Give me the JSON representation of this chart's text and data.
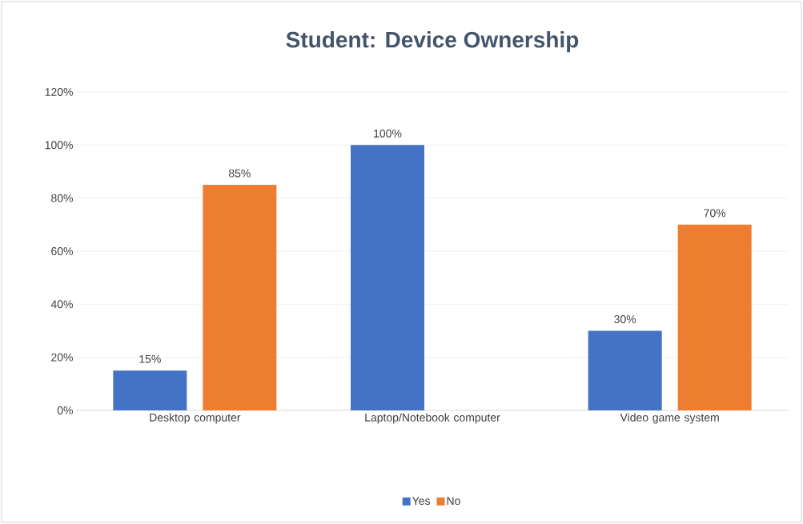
{
  "chart_data": {
    "type": "bar",
    "title": "Student: Device Ownership",
    "categories": [
      "Desktop computer",
      "Laptop/Notebook computer",
      "Video game system"
    ],
    "series": [
      {
        "name": "Yes",
        "color": "#4472c4",
        "values": [
          15,
          100,
          30
        ],
        "value_labels": [
          "15%",
          "100%",
          "30%"
        ]
      },
      {
        "name": "No",
        "color": "#ed7d31",
        "values": [
          85,
          null,
          70
        ],
        "value_labels": [
          "85%",
          null,
          "70%"
        ]
      }
    ],
    "ylim": [
      0,
      120
    ],
    "yticks": [
      {
        "value": 0,
        "label": "0%"
      },
      {
        "value": 20,
        "label": "20%"
      },
      {
        "value": 40,
        "label": "40%"
      },
      {
        "value": 60,
        "label": "60%"
      },
      {
        "value": 80,
        "label": "80%"
      },
      {
        "value": 100,
        "label": "100%"
      },
      {
        "value": 120,
        "label": "120%"
      }
    ],
    "grid": "y",
    "legend": "bottom"
  }
}
